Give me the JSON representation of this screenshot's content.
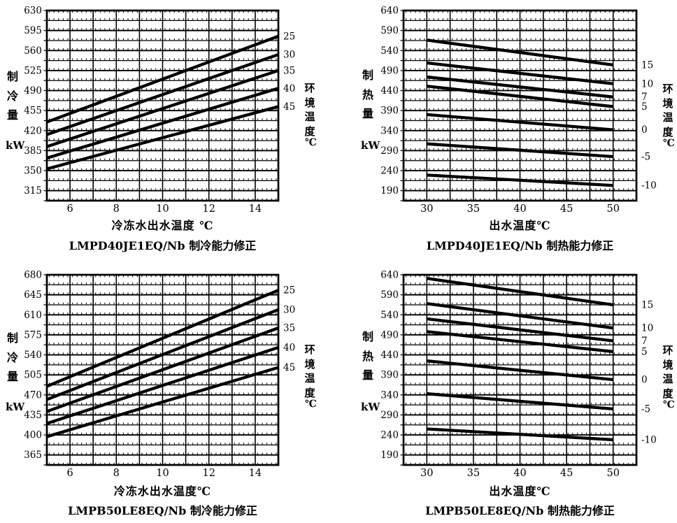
{
  "colors": {
    "ink": "#000000",
    "background": "#ffffff"
  },
  "chart_data": [
    {
      "id": "lmpd40-cooling",
      "type": "line",
      "title": "LMPD40JE1EQ/Nb 制冷能力修正",
      "xlabel": "冷冻水出水温度 ℃",
      "ylabel": "制冷量",
      "y_unit": "kW",
      "right_axis_label": "环境温度",
      "right_axis_unit": "℃",
      "grid": true,
      "x_range": [
        5,
        15
      ],
      "x_minor_step": 1,
      "x_ticks": [
        6,
        8,
        10,
        12,
        14
      ],
      "y_range": [
        297.5,
        630
      ],
      "y_minor_step": 17.5,
      "y_ticks": [
        315,
        350,
        385,
        420,
        455,
        490,
        525,
        560,
        595,
        630
      ],
      "series": [
        {
          "name": "25",
          "x": [
            5,
            15
          ],
          "y": [
            435,
            585
          ]
        },
        {
          "name": "30",
          "x": [
            5,
            15
          ],
          "y": [
            413,
            553
          ]
        },
        {
          "name": "35",
          "x": [
            5,
            15
          ],
          "y": [
            392,
            525
          ]
        },
        {
          "name": "40",
          "x": [
            5,
            15
          ],
          "y": [
            372,
            494
          ]
        },
        {
          "name": "45",
          "x": [
            5,
            15
          ],
          "y": [
            353,
            462
          ]
        }
      ]
    },
    {
      "id": "lmpd40-heating",
      "type": "line",
      "title": "LMPD40JE1EQ/Nb 制热能力修正",
      "xlabel": "出水温度℃",
      "ylabel": "制热量",
      "y_unit": "kW",
      "right_axis_label": "环境温度",
      "right_axis_unit": "℃",
      "grid": true,
      "x_range": [
        27.5,
        52.5
      ],
      "x_minor_step": 2.5,
      "x_ticks": [
        30,
        35,
        40,
        45,
        50
      ],
      "y_range": [
        165,
        640
      ],
      "y_minor_step": 25,
      "y_ticks": [
        190,
        240,
        290,
        340,
        390,
        440,
        490,
        540,
        590,
        640
      ],
      "series": [
        {
          "name": "15",
          "x": [
            30,
            50
          ],
          "y": [
            566,
            504
          ]
        },
        {
          "name": "10",
          "x": [
            30,
            50
          ],
          "y": [
            509,
            457
          ]
        },
        {
          "name": "7",
          "x": [
            30,
            50
          ],
          "y": [
            474,
            424
          ]
        },
        {
          "name": "5",
          "x": [
            30,
            50
          ],
          "y": [
            451,
            400
          ]
        },
        {
          "name": "0",
          "x": [
            30,
            50
          ],
          "y": [
            380,
            342
          ]
        },
        {
          "name": "-5",
          "x": [
            30,
            50
          ],
          "y": [
            307,
            275
          ]
        },
        {
          "name": "-10",
          "x": [
            30,
            50
          ],
          "y": [
            229,
            203
          ]
        }
      ]
    },
    {
      "id": "lmpb50-cooling",
      "type": "line",
      "title": "LMPB50LE8EQ/Nb 制冷能力修正",
      "xlabel": "冷冻水出水温度℃",
      "ylabel": "制冷量",
      "y_unit": "kW",
      "right_axis_label": "环境温度",
      "right_axis_unit": "℃",
      "grid": true,
      "x_range": [
        5,
        15
      ],
      "x_minor_step": 1,
      "x_ticks": [
        6,
        8,
        10,
        12,
        14
      ],
      "y_range": [
        347.5,
        680
      ],
      "y_minor_step": 17.5,
      "y_ticks": [
        365,
        400,
        435,
        470,
        505,
        540,
        575,
        610,
        645,
        680
      ],
      "series": [
        {
          "name": "25",
          "x": [
            5,
            15
          ],
          "y": [
            485,
            653
          ]
        },
        {
          "name": "30",
          "x": [
            5,
            15
          ],
          "y": [
            462,
            619
          ]
        },
        {
          "name": "35",
          "x": [
            5,
            15
          ],
          "y": [
            441,
            587
          ]
        },
        {
          "name": "40",
          "x": [
            5,
            15
          ],
          "y": [
            420,
            553
          ]
        },
        {
          "name": "45",
          "x": [
            5,
            15
          ],
          "y": [
            397,
            518
          ]
        }
      ]
    },
    {
      "id": "lmpb50-heating",
      "type": "line",
      "title": "LMPB50LE8EQ/Nb 制热能力修正",
      "xlabel": "出水温度℃",
      "ylabel": "制热量",
      "y_unit": "kW",
      "right_axis_label": "环境温度",
      "right_axis_unit": "℃",
      "grid": true,
      "x_range": [
        27.5,
        52.5
      ],
      "x_minor_step": 2.5,
      "x_ticks": [
        30,
        35,
        40,
        45,
        50
      ],
      "y_range": [
        165,
        640
      ],
      "y_minor_step": 25,
      "y_ticks": [
        190,
        240,
        290,
        340,
        390,
        440,
        490,
        540,
        590,
        640
      ],
      "series": [
        {
          "name": "15",
          "x": [
            30,
            50
          ],
          "y": [
            631,
            565
          ]
        },
        {
          "name": "10",
          "x": [
            30,
            50
          ],
          "y": [
            568,
            507
          ]
        },
        {
          "name": "7",
          "x": [
            30,
            50
          ],
          "y": [
            530,
            475
          ]
        },
        {
          "name": "5",
          "x": [
            30,
            50
          ],
          "y": [
            498,
            448
          ]
        },
        {
          "name": "0",
          "x": [
            30,
            50
          ],
          "y": [
            425,
            378
          ]
        },
        {
          "name": "-5",
          "x": [
            30,
            50
          ],
          "y": [
            343,
            305
          ]
        },
        {
          "name": "-10",
          "x": [
            30,
            50
          ],
          "y": [
            255,
            228
          ]
        }
      ]
    }
  ]
}
